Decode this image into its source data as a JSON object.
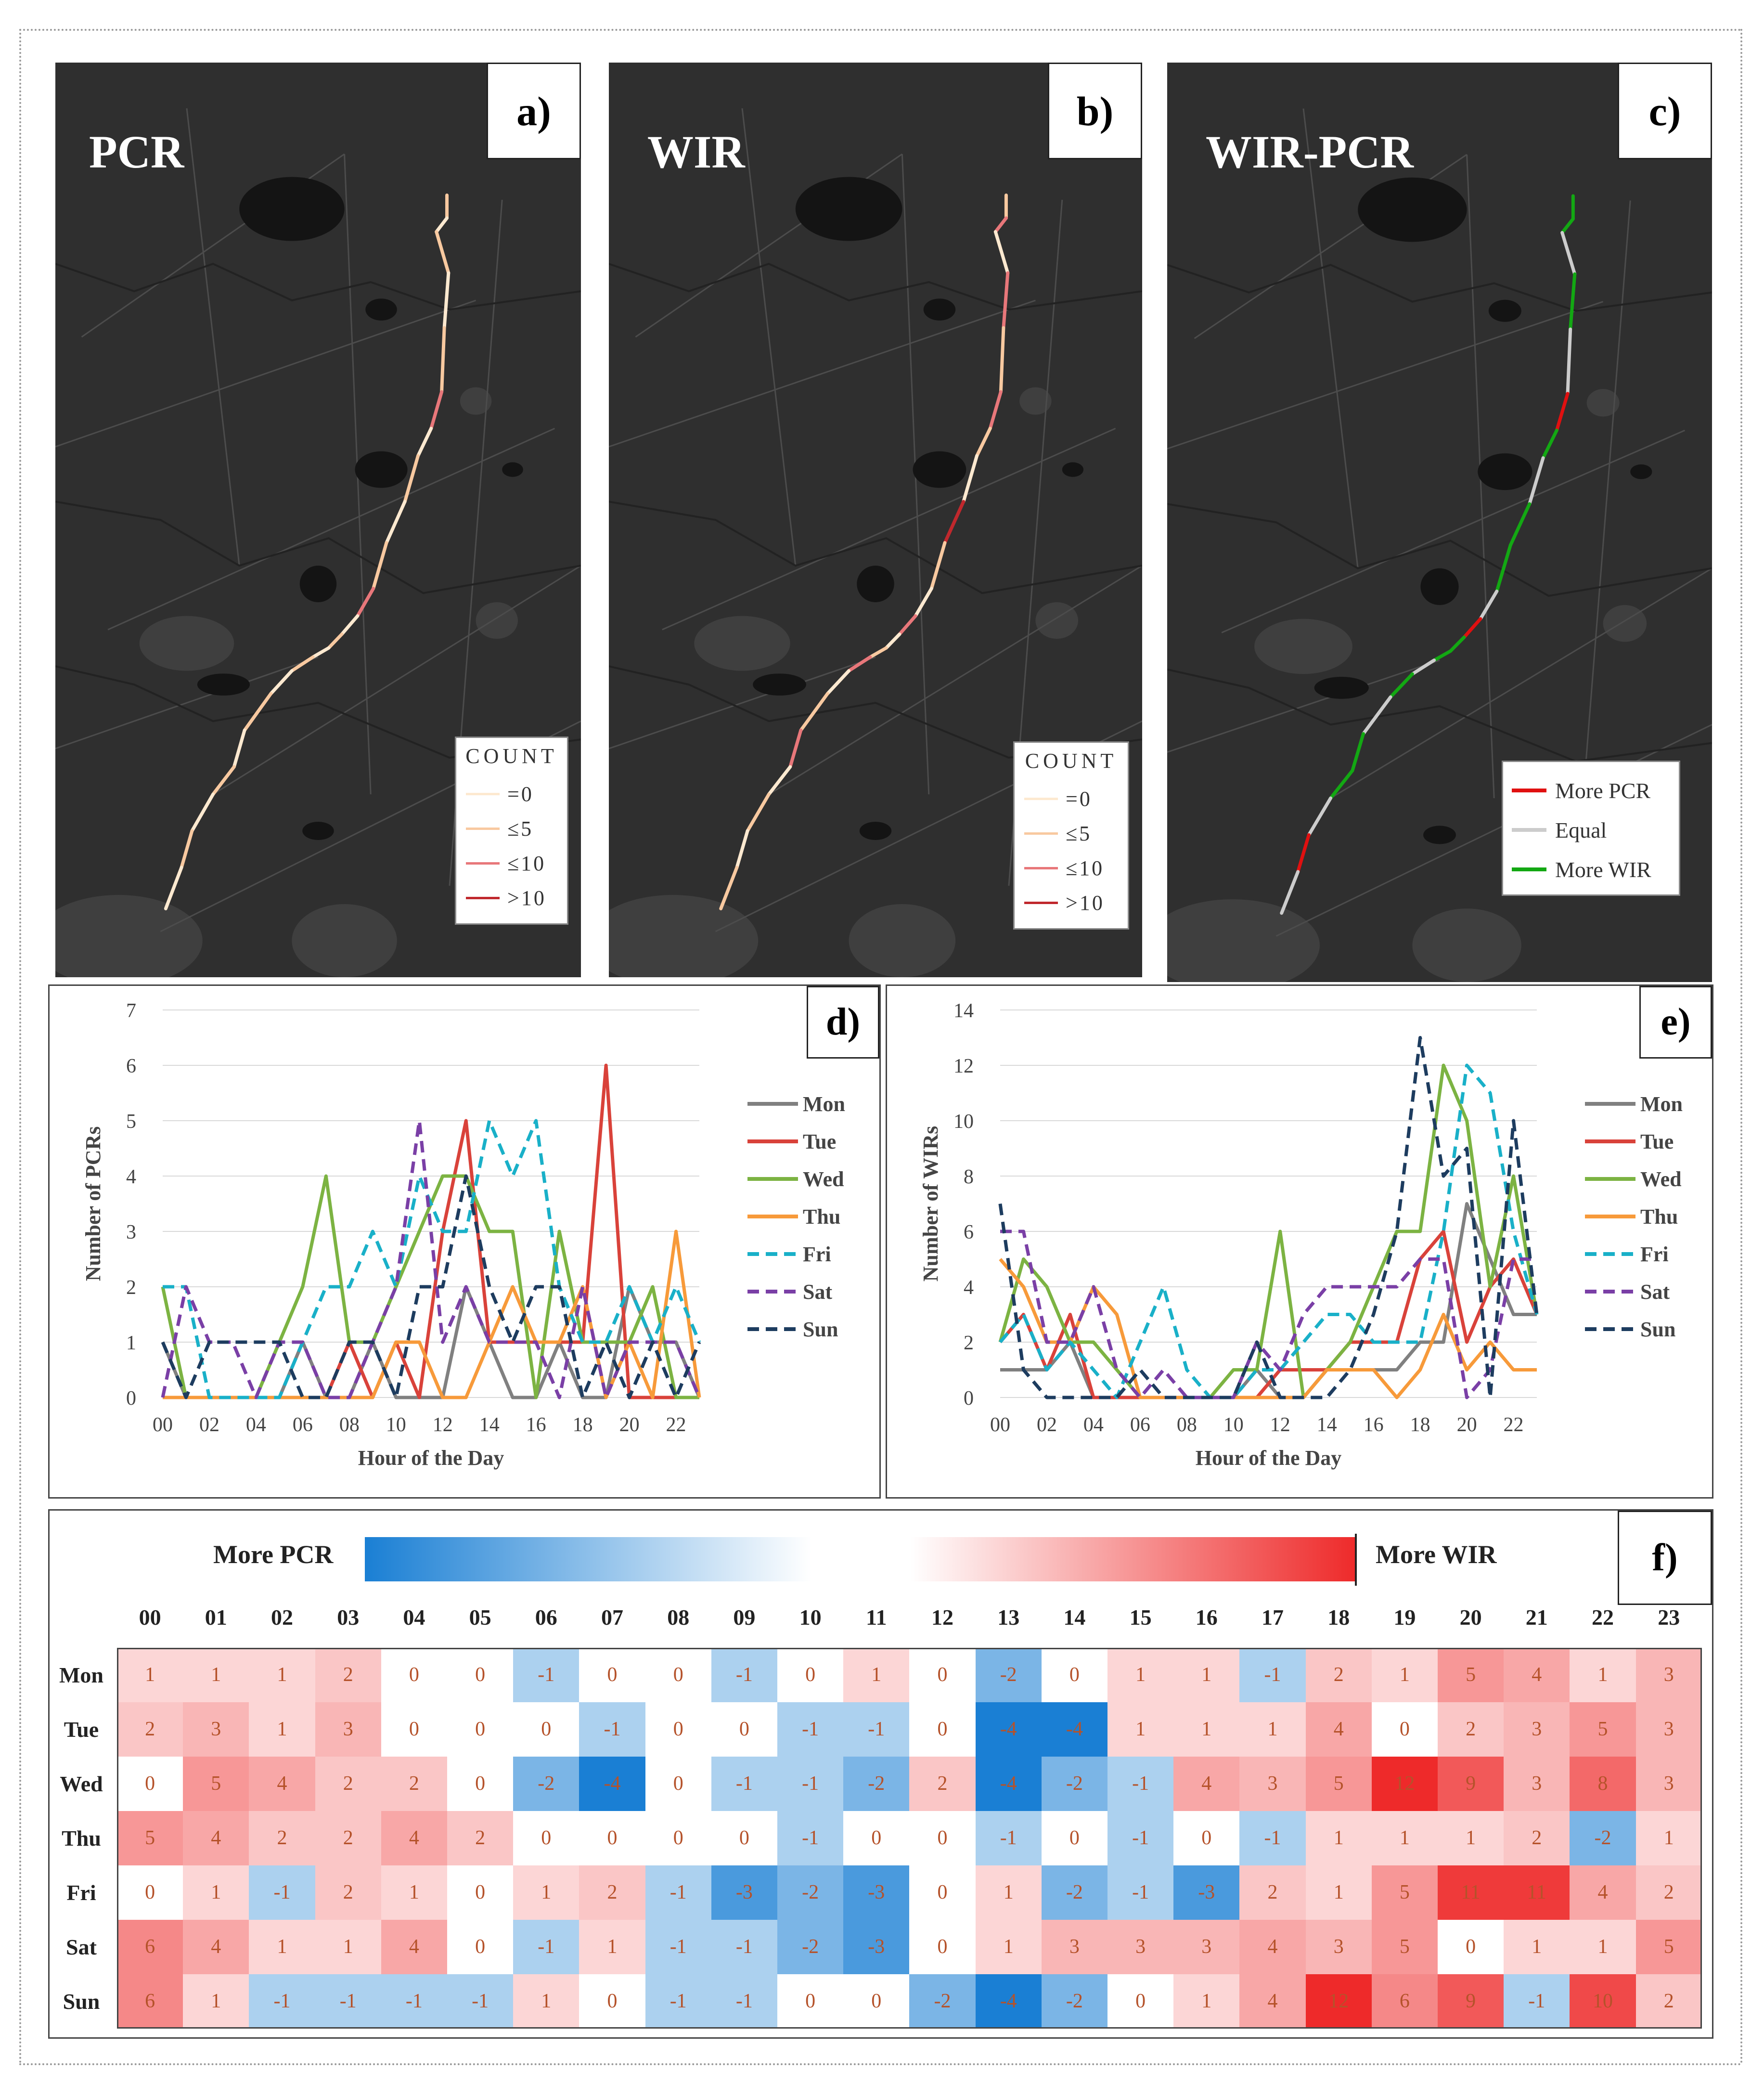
{
  "maps": {
    "a": {
      "title": "PCR",
      "label": "a)"
    },
    "b": {
      "title": "WIR",
      "label": "b)"
    },
    "c": {
      "title": "WIR-PCR",
      "label": "c)"
    },
    "count_legend": {
      "title": "COUNT",
      "items": [
        "=0",
        "≤5",
        "≤10",
        ">10"
      ],
      "colors": [
        "#fde9d0",
        "#f8c9a0",
        "#e8777a",
        "#c0282d"
      ]
    },
    "diff_legend": {
      "items": [
        "More PCR",
        "Equal",
        "More WIR"
      ],
      "colors": [
        "#e01010",
        "#cccccc",
        "#13a813"
      ]
    }
  },
  "chart_data": [
    {
      "type": "line",
      "label": "d)",
      "xlabel": "Hour of the Day",
      "ylabel": "Number of PCRs",
      "ylim": [
        0,
        7
      ],
      "yticks": [
        0,
        1,
        2,
        3,
        4,
        5,
        6,
        7
      ],
      "xticks": [
        "00",
        "02",
        "04",
        "06",
        "08",
        "10",
        "12",
        "14",
        "16",
        "18",
        "20",
        "22"
      ],
      "x": [
        0,
        1,
        2,
        3,
        4,
        5,
        6,
        7,
        8,
        9,
        10,
        11,
        12,
        13,
        14,
        15,
        16,
        17,
        18,
        19,
        20,
        21,
        22,
        23
      ],
      "series": [
        {
          "name": "Mon",
          "color": "#808080",
          "dash": false,
          "values": [
            1,
            0,
            0,
            0,
            0,
            0,
            1,
            0,
            0,
            1,
            0,
            0,
            0,
            2,
            1,
            0,
            0,
            1,
            0,
            0,
            2,
            1,
            1,
            0
          ]
        },
        {
          "name": "Tue",
          "color": "#d9423a",
          "dash": false,
          "values": [
            0,
            0,
            0,
            0,
            0,
            0,
            0,
            0,
            1,
            0,
            1,
            0,
            3,
            5,
            1,
            1,
            1,
            1,
            1,
            6,
            0,
            0,
            0,
            0
          ]
        },
        {
          "name": "Wed",
          "color": "#7cb342",
          "dash": false,
          "values": [
            2,
            0,
            0,
            0,
            0,
            1,
            2,
            4,
            1,
            1,
            2,
            3,
            4,
            4,
            3,
            3,
            0,
            3,
            1,
            1,
            1,
            2,
            0,
            0
          ]
        },
        {
          "name": "Thu",
          "color": "#f79a3a",
          "dash": false,
          "values": [
            0,
            0,
            0,
            0,
            0,
            0,
            0,
            0,
            0,
            0,
            1,
            1,
            0,
            0,
            1,
            2,
            1,
            1,
            2,
            0,
            1,
            0,
            3,
            0
          ]
        },
        {
          "name": "Fri",
          "color": "#19b0c8",
          "dash": true,
          "values": [
            2,
            2,
            0,
            0,
            0,
            0,
            1,
            2,
            2,
            3,
            2,
            4,
            3,
            3,
            5,
            4,
            5,
            2,
            1,
            1,
            2,
            1,
            2,
            1
          ]
        },
        {
          "name": "Sat",
          "color": "#7a3fa6",
          "dash": true,
          "values": [
            0,
            2,
            1,
            1,
            0,
            1,
            1,
            0,
            0,
            1,
            2,
            5,
            1,
            2,
            1,
            1,
            1,
            0,
            2,
            0,
            1,
            1,
            1,
            0
          ]
        },
        {
          "name": "Sun",
          "color": "#1d3c5f",
          "dash": true,
          "values": [
            1,
            0,
            1,
            1,
            1,
            1,
            0,
            0,
            1,
            1,
            0,
            2,
            2,
            4,
            2,
            1,
            2,
            2,
            0,
            1,
            0,
            1,
            0,
            1
          ]
        }
      ]
    },
    {
      "type": "line",
      "label": "e)",
      "xlabel": "Hour of the Day",
      "ylabel": "Number of WIRs",
      "ylim": [
        0,
        14
      ],
      "yticks": [
        0,
        2,
        4,
        6,
        8,
        10,
        12,
        14
      ],
      "xticks": [
        "00",
        "02",
        "04",
        "06",
        "08",
        "10",
        "12",
        "14",
        "16",
        "18",
        "20",
        "22"
      ],
      "x": [
        0,
        1,
        2,
        3,
        4,
        5,
        6,
        7,
        8,
        9,
        10,
        11,
        12,
        13,
        14,
        15,
        16,
        17,
        18,
        19,
        20,
        21,
        22,
        23
      ],
      "series": [
        {
          "name": "Mon",
          "color": "#808080",
          "dash": false,
          "values": [
            1,
            1,
            1,
            2,
            0,
            0,
            0,
            0,
            0,
            0,
            0,
            1,
            0,
            0,
            1,
            1,
            1,
            1,
            2,
            2,
            7,
            5,
            3,
            3
          ]
        },
        {
          "name": "Tue",
          "color": "#d9423a",
          "dash": false,
          "values": [
            2,
            3,
            1,
            3,
            0,
            0,
            0,
            0,
            0,
            0,
            0,
            0,
            1,
            1,
            1,
            2,
            2,
            2,
            5,
            6,
            2,
            4,
            5,
            3
          ]
        },
        {
          "name": "Wed",
          "color": "#7cb342",
          "dash": false,
          "values": [
            2,
            5,
            4,
            2,
            2,
            1,
            0,
            0,
            0,
            0,
            1,
            1,
            6,
            0,
            1,
            2,
            4,
            6,
            6,
            12,
            10,
            4,
            8,
            3
          ]
        },
        {
          "name": "Thu",
          "color": "#f79a3a",
          "dash": false,
          "values": [
            5,
            4,
            2,
            2,
            4,
            3,
            0,
            0,
            0,
            0,
            0,
            0,
            0,
            0,
            1,
            1,
            1,
            0,
            1,
            3,
            1,
            2,
            1,
            1
          ]
        },
        {
          "name": "Fri",
          "color": "#19b0c8",
          "dash": true,
          "values": [
            2,
            3,
            1,
            2,
            1,
            0,
            2,
            4,
            1,
            0,
            0,
            1,
            1,
            2,
            3,
            3,
            2,
            2,
            2,
            6,
            12,
            11,
            6,
            3
          ]
        },
        {
          "name": "Sat",
          "color": "#7a3fa6",
          "dash": true,
          "values": [
            6,
            6,
            2,
            2,
            4,
            1,
            0,
            1,
            0,
            0,
            0,
            2,
            1,
            3,
            4,
            4,
            4,
            4,
            5,
            5,
            0,
            1,
            5,
            5
          ]
        },
        {
          "name": "Sun",
          "color": "#1d3c5f",
          "dash": true,
          "values": [
            7,
            1,
            0,
            0,
            0,
            0,
            1,
            0,
            0,
            0,
            0,
            2,
            0,
            0,
            0,
            1,
            3,
            6,
            13,
            8,
            9,
            0,
            10,
            3
          ]
        }
      ]
    },
    {
      "type": "heatmap",
      "label": "f)",
      "colorbar": {
        "left": "More PCR",
        "right": "More WIR",
        "low_color": "#1a7fd4",
        "high_color": "#ee2a2a"
      },
      "columns": [
        "00",
        "01",
        "02",
        "03",
        "04",
        "05",
        "06",
        "07",
        "08",
        "09",
        "10",
        "11",
        "12",
        "13",
        "14",
        "15",
        "16",
        "17",
        "18",
        "19",
        "20",
        "21",
        "22",
        "23"
      ],
      "rows": [
        "Mon",
        "Tue",
        "Wed",
        "Thu",
        "Fri",
        "Sat",
        "Sun"
      ],
      "values": [
        [
          1,
          1,
          1,
          2,
          0,
          0,
          -1,
          0,
          0,
          -1,
          0,
          1,
          0,
          -2,
          0,
          1,
          1,
          -1,
          2,
          1,
          5,
          4,
          1,
          3
        ],
        [
          2,
          3,
          1,
          3,
          0,
          0,
          0,
          -1,
          0,
          0,
          -1,
          -1,
          0,
          -4,
          -4,
          1,
          1,
          1,
          4,
          0,
          2,
          3,
          5,
          3
        ],
        [
          0,
          5,
          4,
          2,
          2,
          0,
          -2,
          -4,
          0,
          -1,
          -1,
          -2,
          2,
          -4,
          -2,
          -1,
          4,
          3,
          5,
          12,
          9,
          3,
          8,
          3
        ],
        [
          5,
          4,
          2,
          2,
          4,
          2,
          0,
          0,
          0,
          0,
          -1,
          0,
          0,
          -1,
          0,
          -1,
          0,
          -1,
          1,
          1,
          1,
          2,
          -2,
          1
        ],
        [
          0,
          1,
          -1,
          2,
          1,
          0,
          1,
          2,
          -1,
          -3,
          -2,
          -3,
          0,
          1,
          -2,
          -1,
          -3,
          2,
          1,
          5,
          11,
          11,
          4,
          2
        ],
        [
          6,
          4,
          1,
          1,
          4,
          0,
          -1,
          1,
          -1,
          -1,
          -2,
          -3,
          0,
          1,
          3,
          3,
          3,
          4,
          3,
          5,
          0,
          1,
          1,
          5
        ],
        [
          6,
          1,
          -1,
          -1,
          -1,
          -1,
          1,
          0,
          -1,
          -1,
          0,
          0,
          -2,
          -4,
          -2,
          0,
          1,
          4,
          12,
          6,
          9,
          -1,
          10,
          2
        ]
      ]
    }
  ]
}
